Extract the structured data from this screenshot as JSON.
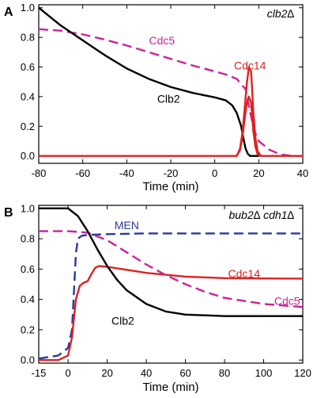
{
  "chart_data": [
    {
      "type": "line",
      "panel_letter": "A",
      "strain_label": "clb2∆",
      "xlabel": "Time (min)",
      "ylabel": "",
      "xlim": [
        -80,
        40
      ],
      "ylim": [
        -0.05,
        1.02
      ],
      "xticks": [
        -80,
        -60,
        -40,
        -20,
        0,
        20,
        40
      ],
      "xtick_labels": [
        "-80",
        "-60",
        "-40",
        "-20",
        "0",
        "20",
        "40"
      ],
      "yticks": [
        0.0,
        0.2,
        0.4,
        0.6,
        0.8,
        1.0
      ],
      "ytick_labels": [
        "0.0",
        "0.2",
        "0.4",
        "0.6",
        "0.8",
        "1.0"
      ],
      "grid": false,
      "series": [
        {
          "name": "Cdc5",
          "color": "#cc2299",
          "dash": "dashed",
          "x": [
            -80,
            -70,
            -60,
            -50,
            -40,
            -30,
            -20,
            -10,
            0,
            5,
            10,
            14,
            16,
            18,
            20,
            25,
            30,
            35,
            40
          ],
          "y": [
            0.855,
            0.845,
            0.82,
            0.785,
            0.745,
            0.7,
            0.655,
            0.61,
            0.57,
            0.55,
            0.52,
            0.45,
            0.3,
            0.17,
            0.1,
            0.04,
            0.01,
            0.0,
            0.0
          ]
        },
        {
          "name": "Clb2",
          "color": "#000000",
          "dash": "solid",
          "x": [
            -80,
            -75,
            -70,
            -60,
            -50,
            -40,
            -30,
            -20,
            -10,
            0,
            5,
            8,
            10,
            12,
            13,
            14,
            15,
            16,
            18,
            20
          ],
          "y": [
            1.0,
            0.94,
            0.88,
            0.78,
            0.68,
            0.59,
            0.52,
            0.465,
            0.425,
            0.395,
            0.375,
            0.34,
            0.29,
            0.2,
            0.12,
            0.05,
            0.015,
            0.0,
            0.0,
            0.0
          ]
        },
        {
          "name": "Cdc14",
          "color": "#dd2222",
          "dash": "solid",
          "x": [
            -80,
            0,
            10,
            11.5,
            12.5,
            13.5,
            14.5,
            15.5,
            16.5,
            17,
            17.5,
            18.5,
            19.5,
            21,
            40
          ],
          "y": [
            0.0,
            0.0,
            0.0,
            0.05,
            0.15,
            0.3,
            0.48,
            0.6,
            0.57,
            0.45,
            0.3,
            0.12,
            0.03,
            0.0,
            0.0
          ]
        },
        {
          "name": "",
          "color": "#dd2222",
          "dash": "solid",
          "x": [
            10,
            11.5,
            12.5,
            13.5,
            14.5,
            15.5,
            16.5,
            17,
            17.5,
            18.5,
            19.5,
            21
          ],
          "y": [
            0.0,
            0.04,
            0.12,
            0.24,
            0.35,
            0.4,
            0.36,
            0.27,
            0.17,
            0.06,
            0.01,
            0.0
          ]
        }
      ],
      "annotations": [
        {
          "text": "Cdc5",
          "x": -24,
          "y": 0.78,
          "color": "#cc2299"
        },
        {
          "text": "Cdc14",
          "x": 16,
          "y": 0.61,
          "color": "#dd2222"
        },
        {
          "text": "Clb2",
          "x": -21,
          "y": 0.385,
          "color": "#000000"
        }
      ]
    },
    {
      "type": "line",
      "panel_letter": "B",
      "strain_label": "bub2∆ cdh1∆",
      "xlabel": "Time (min)",
      "ylabel": "",
      "xlim": [
        -15,
        120
      ],
      "ylim": [
        -0.02,
        1.02
      ],
      "xticks": [
        -15,
        0,
        20,
        40,
        60,
        80,
        100,
        120
      ],
      "xtick_labels": [
        "-15",
        "0",
        "20",
        "40",
        "60",
        "80",
        "100",
        "120"
      ],
      "yticks": [
        0.0,
        0.2,
        0.4,
        0.6,
        0.8,
        1.0
      ],
      "ytick_labels": [
        "0.0",
        "0.2",
        "0.4",
        "0.6",
        "0.8",
        "1.0"
      ],
      "grid": false,
      "series": [
        {
          "name": "MEN",
          "color": "#2a3a9a",
          "dash": "dashed",
          "x": [
            -15,
            -5,
            0,
            2,
            3,
            4,
            5,
            7,
            10,
            20,
            40,
            60,
            80,
            100,
            120
          ],
          "y": [
            0.01,
            0.03,
            0.08,
            0.2,
            0.45,
            0.7,
            0.8,
            0.82,
            0.825,
            0.83,
            0.835,
            0.835,
            0.835,
            0.835,
            0.835
          ]
        },
        {
          "name": "Cdc14",
          "color": "#dd2222",
          "dash": "solid",
          "x": [
            -15,
            -5,
            0,
            2,
            4,
            6,
            8,
            10,
            12,
            14,
            16,
            20,
            30,
            40,
            60,
            80,
            100,
            120
          ],
          "y": [
            0.0,
            0.0,
            0.03,
            0.15,
            0.4,
            0.49,
            0.51,
            0.52,
            0.57,
            0.61,
            0.62,
            0.615,
            0.595,
            0.575,
            0.55,
            0.54,
            0.538,
            0.537
          ]
        },
        {
          "name": "Cdc5",
          "color": "#cc2299",
          "dash": "dashed",
          "x": [
            -15,
            0,
            10,
            20,
            30,
            40,
            50,
            60,
            70,
            80,
            90,
            100,
            110,
            120
          ],
          "y": [
            0.85,
            0.85,
            0.84,
            0.79,
            0.71,
            0.63,
            0.56,
            0.5,
            0.45,
            0.41,
            0.39,
            0.37,
            0.36,
            0.35
          ]
        },
        {
          "name": "Clb2",
          "color": "#000000",
          "dash": "solid",
          "x": [
            -15,
            0,
            5,
            10,
            15,
            20,
            25,
            30,
            40,
            50,
            60,
            70,
            80,
            90,
            100,
            120
          ],
          "y": [
            1.0,
            1.0,
            0.95,
            0.85,
            0.73,
            0.62,
            0.53,
            0.46,
            0.37,
            0.32,
            0.3,
            0.295,
            0.29,
            0.29,
            0.29,
            0.29
          ]
        }
      ],
      "annotations": [
        {
          "text": "MEN",
          "x": 30,
          "y": 0.89,
          "color": "#2a3a9a"
        },
        {
          "text": "Cdc14",
          "x": 90,
          "y": 0.57,
          "color": "#dd2222"
        },
        {
          "text": "Cdc5",
          "x": 112,
          "y": 0.39,
          "color": "#cc2299"
        },
        {
          "text": "Clb2",
          "x": 28,
          "y": 0.26,
          "color": "#000000"
        }
      ]
    }
  ]
}
